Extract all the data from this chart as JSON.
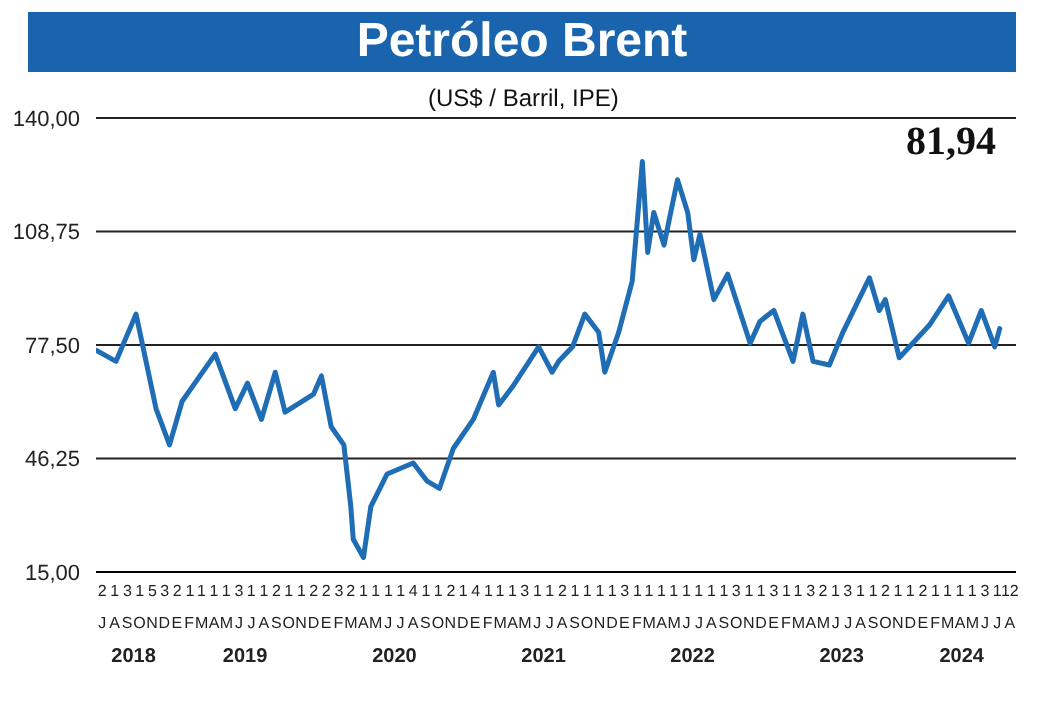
{
  "chart_data": {
    "type": "line",
    "title": "Petróleo Brent",
    "subtitle": "(US$ / Barril, IPE)",
    "annotations": [
      "81,94",
      "JASONDEFMAMJJASONDEFMAMJJASONDEFMAMJJASONDEFMAMJJASONDEFMAMJJASONDEFMAMJJA"
    ],
    "series": [
      {
        "color": "#1f6db5",
        "x": [
          "2018-07-02",
          "2018-08-19",
          "2018-10-07",
          "2018-11-25",
          "2018-12-28",
          "2019-01-28",
          "2019-04-19",
          "2019-06-07",
          "2019-07-07",
          "2019-08-10",
          "2019-09-13",
          "2019-10-07",
          "2019-12-16",
          "2020-01-04",
          "2020-01-28",
          "2020-02-28",
          "2020-03-16",
          "2020-03-22",
          "2020-04-16",
          "2020-05-04",
          "2020-06-13",
          "2020-08-16",
          "2020-09-19",
          "2020-10-19",
          "2020-11-22",
          "2021-01-10",
          "2021-02-28",
          "2021-03-13",
          "2021-04-16",
          "2021-06-19",
          "2021-07-22",
          "2021-08-07",
          "2021-09-10",
          "2021-10-10",
          "2021-11-13",
          "2021-11-28",
          "2022-01-01",
          "2022-02-03",
          "2022-02-28",
          "2022-03-13",
          "2022-03-28",
          "2022-04-22",
          "2022-05-25",
          "2022-06-19",
          "2022-07-04",
          "2022-07-19",
          "2022-08-22",
          "2022-09-25",
          "2022-11-19",
          "2022-12-13",
          "2023-01-16",
          "2023-03-04",
          "2023-03-28",
          "2023-04-22",
          "2023-06-01",
          "2023-07-04",
          "2023-09-07",
          "2023-10-01",
          "2023-10-16",
          "2023-11-19",
          "2023-12-22",
          "2024-02-01",
          "2024-03-19",
          "2024-05-07",
          "2024-06-07",
          "2024-07-10",
          "2024-07-22"
        ],
        "values": [
          76,
          73,
          86,
          60,
          50,
          62,
          75,
          60,
          67,
          57,
          70,
          59,
          64,
          69,
          55,
          50,
          33,
          24,
          19,
          33,
          42,
          45,
          40,
          38,
          49,
          57,
          70,
          61,
          66,
          77,
          70,
          73,
          77,
          86,
          81,
          70,
          81,
          95,
          128,
          103,
          114,
          105,
          123,
          114,
          101,
          108,
          90,
          97,
          78,
          84,
          87,
          73,
          86,
          73,
          72,
          81,
          96,
          87,
          90,
          74,
          78,
          83,
          91,
          78,
          87,
          77,
          82
        ]
      }
    ],
    "ylim": [
      15,
      140
    ],
    "yticks": [
      {
        "value": 15,
        "label": "15,00"
      },
      {
        "value": 46.25,
        "label": "46,25"
      },
      {
        "value": 77.5,
        "label": "77,50"
      },
      {
        "value": 108.75,
        "label": "108,75"
      },
      {
        "value": 140,
        "label": "140,00"
      }
    ],
    "grid": "y",
    "marker": "none",
    "line_style": "solid",
    "xlim": [
      "2018-07-01",
      "2024-08-31"
    ],
    "xticks": [
      {
        "value": "2018-10-01",
        "label": "2018"
      },
      {
        "value": "2019-07-01",
        "label": "2019"
      },
      {
        "value": "2020-07-01",
        "label": "2020"
      },
      {
        "value": "2021-07-01",
        "label": "2021"
      },
      {
        "value": "2022-07-01",
        "label": "2022"
      },
      {
        "value": "2023-07-01",
        "label": "2023"
      },
      {
        "value": "2024-04-20",
        "label": "2024"
      }
    ],
    "x2lim": [
      "2018-07-01",
      "2024-08-31"
    ],
    "x2ticks": [
      {
        "value": "2018-07-16",
        "label": "2"
      },
      {
        "value": "2018-08-16",
        "label": "1"
      },
      {
        "value": "2018-09-16",
        "label": "3"
      },
      {
        "value": "2018-10-16",
        "label": "1"
      },
      {
        "value": "2018-11-16",
        "label": "5"
      },
      {
        "value": "2018-12-16",
        "label": "3"
      },
      {
        "value": "2019-01-16",
        "label": "2"
      },
      {
        "value": "2019-02-16",
        "label": "1"
      },
      {
        "value": "2019-03-16",
        "label": "1"
      },
      {
        "value": "2019-04-16",
        "label": "1"
      },
      {
        "value": "2019-05-16",
        "label": "1"
      },
      {
        "value": "2019-06-16",
        "label": "3"
      },
      {
        "value": "2019-07-16",
        "label": "1"
      },
      {
        "value": "2019-08-16",
        "label": "1"
      },
      {
        "value": "2019-09-16",
        "label": "2"
      },
      {
        "value": "2019-10-16",
        "label": "1"
      },
      {
        "value": "2019-11-16",
        "label": "1"
      },
      {
        "value": "2019-12-16",
        "label": "2"
      },
      {
        "value": "2020-01-16",
        "label": "2"
      },
      {
        "value": "2020-02-16",
        "label": "3"
      },
      {
        "value": "2020-03-16",
        "label": "2"
      },
      {
        "value": "2020-04-16",
        "label": "1"
      },
      {
        "value": "2020-05-16",
        "label": "1"
      },
      {
        "value": "2020-06-16",
        "label": "1"
      },
      {
        "value": "2020-07-16",
        "label": "1"
      },
      {
        "value": "2020-08-16",
        "label": "4"
      },
      {
        "value": "2020-09-16",
        "label": "1"
      },
      {
        "value": "2020-10-16",
        "label": "1"
      },
      {
        "value": "2020-11-16",
        "label": "2"
      },
      {
        "value": "2020-12-16",
        "label": "1"
      },
      {
        "value": "2021-01-16",
        "label": "4"
      },
      {
        "value": "2021-02-16",
        "label": "1"
      },
      {
        "value": "2021-03-16",
        "label": "1"
      },
      {
        "value": "2021-04-16",
        "label": "1"
      },
      {
        "value": "2021-05-16",
        "label": "3"
      },
      {
        "value": "2021-06-16",
        "label": "1"
      },
      {
        "value": "2021-07-16",
        "label": "1"
      },
      {
        "value": "2021-08-16",
        "label": "2"
      },
      {
        "value": "2021-09-16",
        "label": "1"
      },
      {
        "value": "2021-10-16",
        "label": "1"
      },
      {
        "value": "2021-11-16",
        "label": "1"
      },
      {
        "value": "2021-12-16",
        "label": "1"
      },
      {
        "value": "2022-01-16",
        "label": "3"
      },
      {
        "value": "2022-02-16",
        "label": "1"
      },
      {
        "value": "2022-03-16",
        "label": "1"
      },
      {
        "value": "2022-04-16",
        "label": "1"
      },
      {
        "value": "2022-05-16",
        "label": "1"
      },
      {
        "value": "2022-06-16",
        "label": "1"
      },
      {
        "value": "2022-07-16",
        "label": "1"
      },
      {
        "value": "2022-08-16",
        "label": "1"
      },
      {
        "value": "2022-09-16",
        "label": "1"
      },
      {
        "value": "2022-10-16",
        "label": "3"
      },
      {
        "value": "2022-11-16",
        "label": "1"
      },
      {
        "value": "2022-12-16",
        "label": "1"
      },
      {
        "value": "2023-01-16",
        "label": "3"
      },
      {
        "value": "2023-02-16",
        "label": "1"
      },
      {
        "value": "2023-03-16",
        "label": "1"
      },
      {
        "value": "2023-04-16",
        "label": "3"
      },
      {
        "value": "2023-05-16",
        "label": "2"
      },
      {
        "value": "2023-06-16",
        "label": "1"
      },
      {
        "value": "2023-07-16",
        "label": "3"
      },
      {
        "value": "2023-08-16",
        "label": "1"
      },
      {
        "value": "2023-09-16",
        "label": "1"
      },
      {
        "value": "2023-10-16",
        "label": "2"
      },
      {
        "value": "2023-11-16",
        "label": "1"
      },
      {
        "value": "2023-12-16",
        "label": "1"
      },
      {
        "value": "2024-01-16",
        "label": "2"
      },
      {
        "value": "2024-02-16",
        "label": "1"
      },
      {
        "value": "2024-03-16",
        "label": "1"
      },
      {
        "value": "2024-04-16",
        "label": "1"
      },
      {
        "value": "2024-05-16",
        "label": "1"
      },
      {
        "value": "2024-06-16",
        "label": "3"
      },
      {
        "value": "2024-07-16",
        "label": "1"
      },
      {
        "value": "2024-08-16",
        "label": "12"
      }
    ]
  }
}
